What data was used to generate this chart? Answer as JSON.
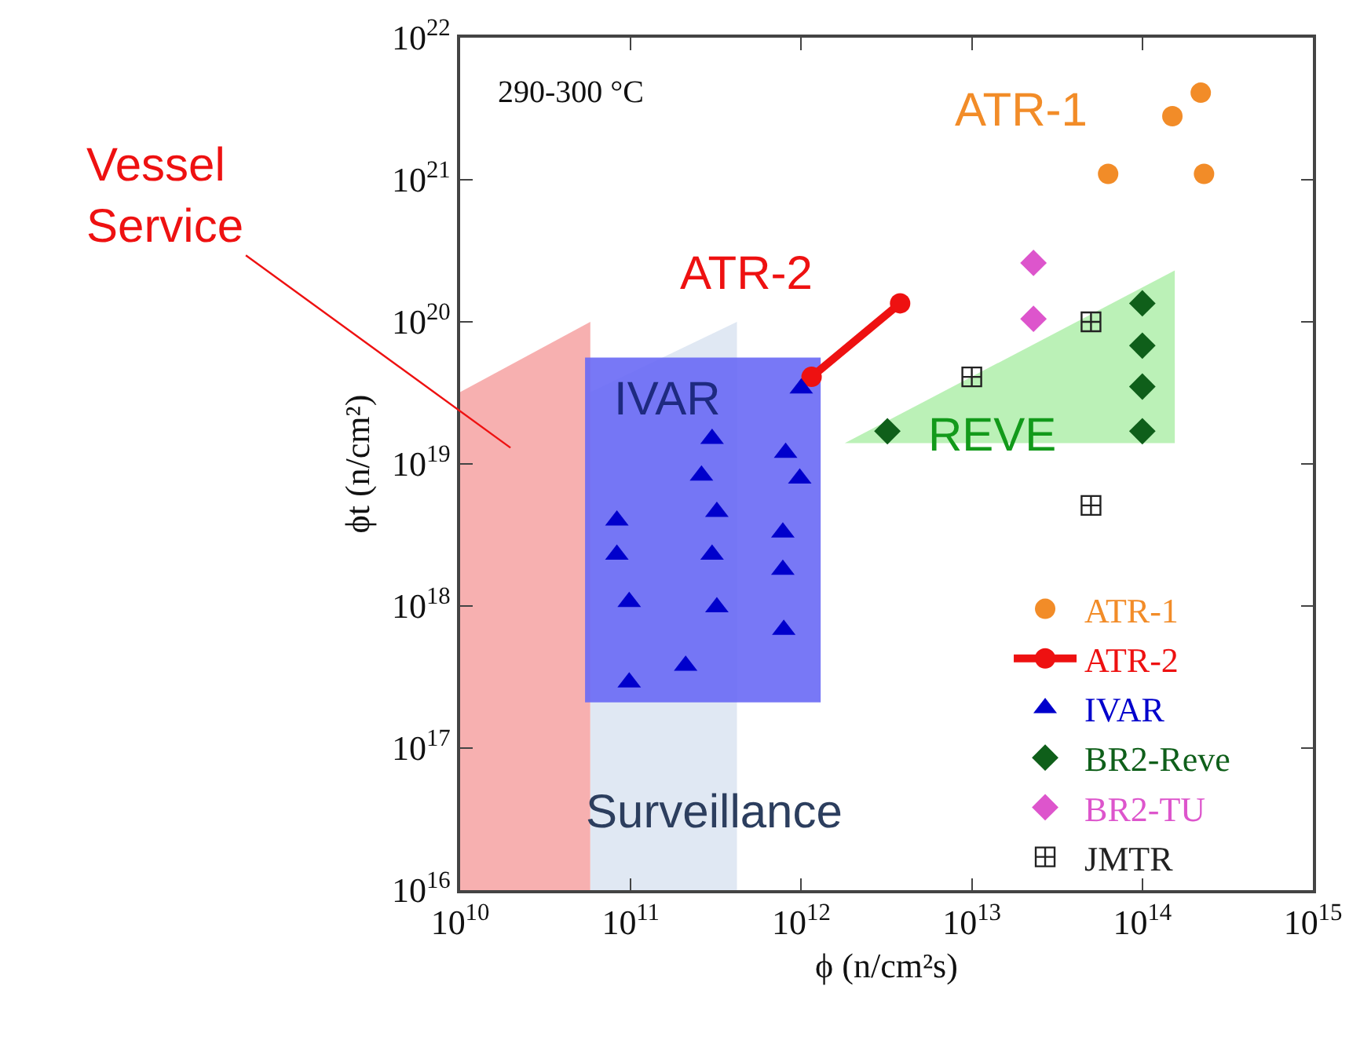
{
  "chart_data": {
    "type": "scatter",
    "xlabel": "ϕ (n/cm²s)",
    "ylabel": "ϕt (n/cm²)",
    "log": "xy",
    "grid": false,
    "legend": "bottom right",
    "xlim": [
      10000000000.0,
      1000000000000000.0
    ],
    "ylim": [
      1e+16,
      1e+22
    ],
    "xticks": [
      {
        "value": 10000000000.0,
        "label": "10$^{10}$"
      },
      {
        "value": 100000000000.0,
        "label": "10$^{11}$"
      },
      {
        "value": 1000000000000.0,
        "label": "10$^{12}$"
      },
      {
        "value": 10000000000000.0,
        "label": "10$^{13}$"
      },
      {
        "value": 100000000000000.0,
        "label": "10$^{14}$"
      },
      {
        "value": 1000000000000000.0,
        "label": "10$^{15}$"
      }
    ],
    "yticks": [
      {
        "value": 1e+16,
        "label": "10$^{16}$"
      },
      {
        "value": 1e+17,
        "label": "10$^{17}$"
      },
      {
        "value": 1e+18,
        "label": "10$^{18}$"
      },
      {
        "value": 1e+19,
        "label": "10$^{19}$"
      },
      {
        "value": 1e+20,
        "label": "10$^{20}$"
      },
      {
        "value": 1e+21,
        "label": "10$^{21}$"
      },
      {
        "value": 1e+22,
        "label": "10$^{22}$"
      }
    ],
    "series": [
      {
        "type": "area",
        "color": "#f7a8a8",
        "x": [
          10000000000.0,
          58000000000.0,
          58000000000.0,
          10000000000.0
        ],
        "values": [
          3.2e+19,
          1e+20,
          1e+16,
          1e+16
        ]
      },
      {
        "type": "area",
        "color": "#dde6f2",
        "x": [
          58000000000.0,
          420000000000.0,
          420000000000.0,
          58000000000.0
        ],
        "values": [
          3.2e+19,
          1e+20,
          1e+16,
          1e+16
        ]
      },
      {
        "type": "area",
        "color": "#6a6af6",
        "x": [
          54000000000.0,
          1300000000000.0,
          1300000000000.0,
          54000000000.0
        ],
        "values": [
          5.6e+19,
          5.6e+19,
          2.1e+17,
          2.1e+17
        ]
      },
      {
        "type": "area",
        "color": "#b4f0b0",
        "x": [
          1800000000000.0,
          155000000000000.0,
          155000000000000.0
        ],
        "values": [
          1.4e+19,
          1.4e+19,
          2.3e+20
        ]
      },
      {
        "name": "ATR-1",
        "marker": "circle",
        "color": "#f28c28",
        "x": [
          220000000000000.0,
          150000000000000.0,
          63000000000000.0,
          230000000000000.0
        ],
        "values": [
          4.1e+21,
          2.8e+21,
          1.1e+21,
          1.1e+21
        ]
      },
      {
        "name": "ATR-2",
        "type": "line",
        "marker": "circle",
        "color": "#ee1111",
        "x": [
          1150000000000.0,
          3800000000000.0
        ],
        "values": [
          4.1e+19,
          1.35e+20
        ]
      },
      {
        "name": "IVAR",
        "marker": "triangle",
        "color": "#0000cc",
        "x": [
          1000000000000.0,
          300000000000.0,
          810000000000.0,
          260000000000.0,
          980000000000.0,
          83000000000.0,
          320000000000.0,
          780000000000.0,
          83000000000.0,
          300000000000.0,
          780000000000.0,
          98000000000.0,
          320000000000.0,
          790000000000.0,
          210000000000.0,
          98000000000.0
        ],
        "values": [
          3.4e+19,
          1.5e+19,
          1.2e+19,
          8.3e+18,
          7.9e+18,
          4e+18,
          4.6e+18,
          3.3e+18,
          2.3e+18,
          2.3e+18,
          1.8e+18,
          1.07e+18,
          9.8e+17,
          6.8e+17,
          3.8e+17,
          2.9e+17
        ]
      },
      {
        "name": "BR2-Reve",
        "marker": "diamond",
        "color": "#0f5f1a",
        "x": [
          3200000000000.0,
          100000000000000.0,
          100000000000000.0,
          100000000000000.0,
          100000000000000.0
        ],
        "values": [
          1.7e+19,
          1.35e+20,
          6.8e+19,
          3.5e+19,
          1.7e+19
        ]
      },
      {
        "name": "BR2-TU",
        "marker": "diamond",
        "color": "#dd55cc",
        "x": [
          23000000000000.0,
          23000000000000.0
        ],
        "values": [
          2.6e+20,
          1.05e+20
        ]
      },
      {
        "name": "JMTR",
        "marker": "cross",
        "color": "#222222",
        "x": [
          50000000000000.0,
          10000000000000.0,
          50000000000000.0
        ],
        "values": [
          1e+20,
          4.1e+19,
          5.1e+18
        ]
      }
    ],
    "annotations": [
      "290-300 °C",
      "ATR-1",
      "ATR-2",
      "IVAR",
      "REVE",
      "Surveillance",
      "Vessel\nService"
    ]
  }
}
